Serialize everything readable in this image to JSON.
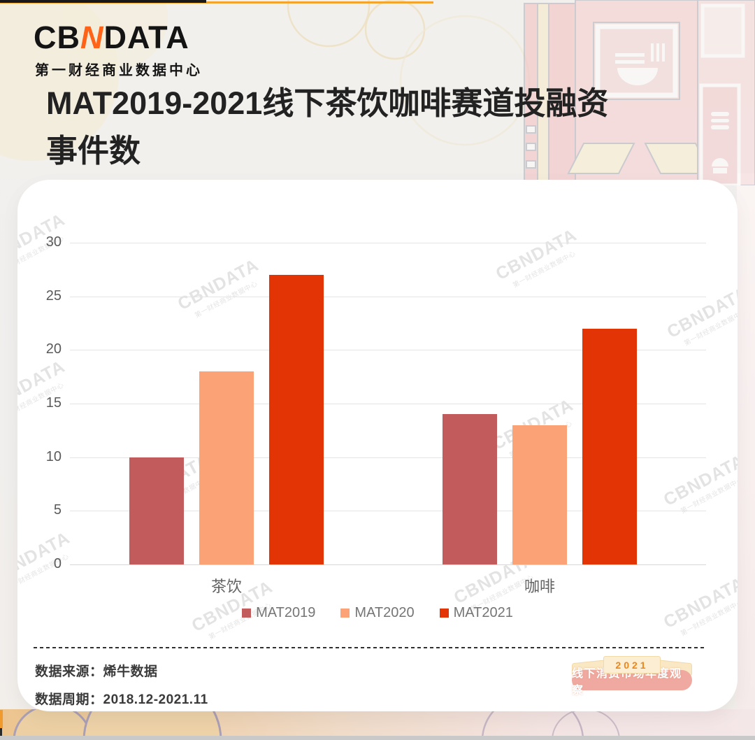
{
  "logo": {
    "part1": "CB",
    "part2": "N",
    "part3": "DATA",
    "tagline": "第一财经商业数据中心",
    "accent_color": "#ff6317"
  },
  "title": {
    "line1": "MAT2019-2021线下茶饮咖啡赛道投融资",
    "line2": "事件数"
  },
  "watermark": {
    "line1": "CBNDATA",
    "line2": "第一财经商业数据中心"
  },
  "chart_data": {
    "type": "bar",
    "categories": [
      "茶饮",
      "咖啡"
    ],
    "series": [
      {
        "name": "MAT2019",
        "color": "#c25b5b",
        "values": [
          10,
          14
        ]
      },
      {
        "name": "MAT2020",
        "color": "#fca277",
        "values": [
          18,
          13
        ]
      },
      {
        "name": "MAT2021",
        "color": "#e23405",
        "values": [
          27,
          22
        ]
      }
    ],
    "title": "MAT2019-2021线下茶饮咖啡赛道投融资事件数",
    "xlabel": "",
    "ylabel": "",
    "ylim": [
      0,
      30
    ],
    "yticks": [
      0,
      5,
      10,
      15,
      20,
      25,
      30
    ],
    "grid": true,
    "legend_position": "bottom"
  },
  "footer": {
    "source_label": "数据来源：",
    "source_value": "烯牛数据",
    "period_label": "数据周期：",
    "period_value": "2018.12-2021.11"
  },
  "badge": {
    "year": "2021",
    "label": "线下消费市场年度观察"
  }
}
